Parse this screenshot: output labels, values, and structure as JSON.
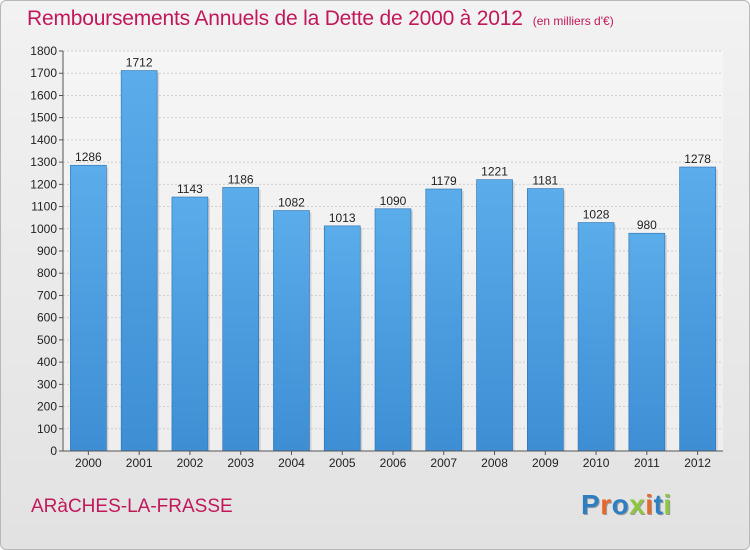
{
  "header": {
    "title": "Remboursements Annuels de la Dette de 2000 à 2012",
    "unit": "(en milliers d'€)"
  },
  "footer": {
    "commune": "ARàCHES-LA-FRASSE",
    "brand": "Proxiti",
    "brand_letters": [
      {
        "char": "P",
        "color": "#2d7fc1"
      },
      {
        "char": "r",
        "color": "#e8672a"
      },
      {
        "char": "o",
        "color": "#2d7fc1"
      },
      {
        "char": "x",
        "color": "#8dc63f"
      },
      {
        "char": "i",
        "color": "#e8672a"
      },
      {
        "char": "t",
        "color": "#2d7fc1"
      },
      {
        "char": "i",
        "color": "#8dc63f"
      }
    ]
  },
  "chart_data": {
    "type": "bar",
    "title": "Remboursements Annuels de la Dette de 2000 à 2012",
    "categories": [
      "2000",
      "2001",
      "2002",
      "2003",
      "2004",
      "2005",
      "2006",
      "2007",
      "2008",
      "2009",
      "2010",
      "2011",
      "2012"
    ],
    "values": [
      1286,
      1712,
      1143,
      1186,
      1082,
      1013,
      1090,
      1179,
      1221,
      1181,
      1028,
      980,
      1278
    ],
    "ylim": [
      0,
      1800
    ],
    "yticks": [
      0,
      100,
      200,
      300,
      400,
      500,
      600,
      700,
      800,
      900,
      1000,
      1100,
      1200,
      1300,
      1400,
      1500,
      1600,
      1700,
      1800
    ],
    "grid": true,
    "bar_color": "#3d8ed4",
    "bar_color_light": "#5aacea"
  }
}
